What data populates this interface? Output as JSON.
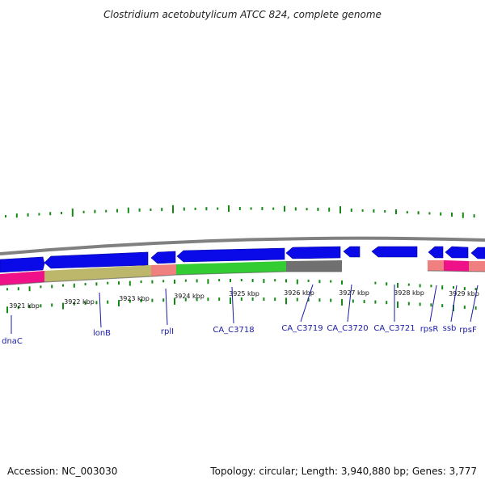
{
  "title": "Clostridium acetobutylicum ATCC 824, complete genome",
  "footer": {
    "accession": "Accession: NC_003030",
    "summary": "Topology: circular; Length: 3,940,880 bp; Genes: 3,777"
  },
  "colors": {
    "forward_cds": "#0a0ae8",
    "backbone": "#808080",
    "cog_magenta": "#ee1188",
    "cog_khaki": "#bdb76b",
    "cog_pink": "#f08080",
    "cog_green": "#33cc33",
    "cog_gray": "#707070",
    "gc_ticks": "#138a13",
    "label_blue": "#1a1aa6"
  },
  "kbp_ticks": [
    "3921 kbp",
    "3922 kbp",
    "3923 kbp",
    "3924 kbp",
    "3925 kbp",
    "3926 kbp",
    "3927 kbp",
    "3928 kbp",
    "3929 kbp"
  ],
  "genes": [
    "dnaC",
    "lonB",
    "rplI",
    "CA_C3718",
    "CA_C3719",
    "CA_C3720",
    "CA_C3721",
    "rpsR",
    "ssb",
    "rpsF"
  ]
}
